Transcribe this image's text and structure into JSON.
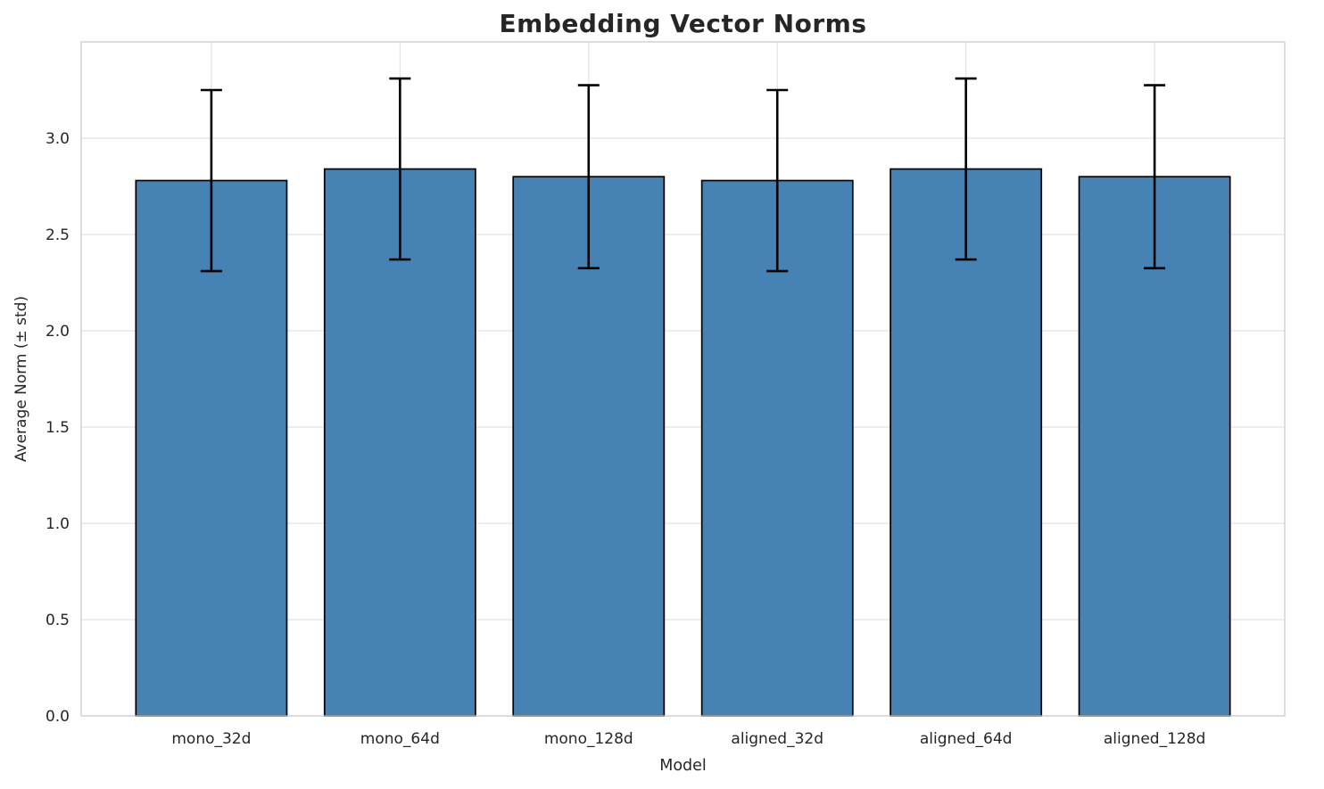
{
  "chart_data": {
    "type": "bar",
    "title": "Embedding Vector Norms",
    "xlabel": "Model",
    "ylabel": "Average Norm (± std)",
    "categories": [
      "mono_32d",
      "mono_64d",
      "mono_128d",
      "aligned_32d",
      "aligned_64d",
      "aligned_128d"
    ],
    "values": [
      2.78,
      2.84,
      2.8,
      2.78,
      2.84,
      2.8
    ],
    "errors": [
      0.47,
      0.47,
      0.475,
      0.47,
      0.47,
      0.475
    ],
    "ylim": [
      0,
      3.5
    ],
    "yticks": [
      0.0,
      0.5,
      1.0,
      1.5,
      2.0,
      2.5,
      3.0
    ],
    "grid": true,
    "legend": "none",
    "bar_color": "#4682b4",
    "bar_edge_color": "#000000",
    "error_color": "#000000",
    "grid_color": "#e2e2e2",
    "spine_color": "#cccccc"
  }
}
